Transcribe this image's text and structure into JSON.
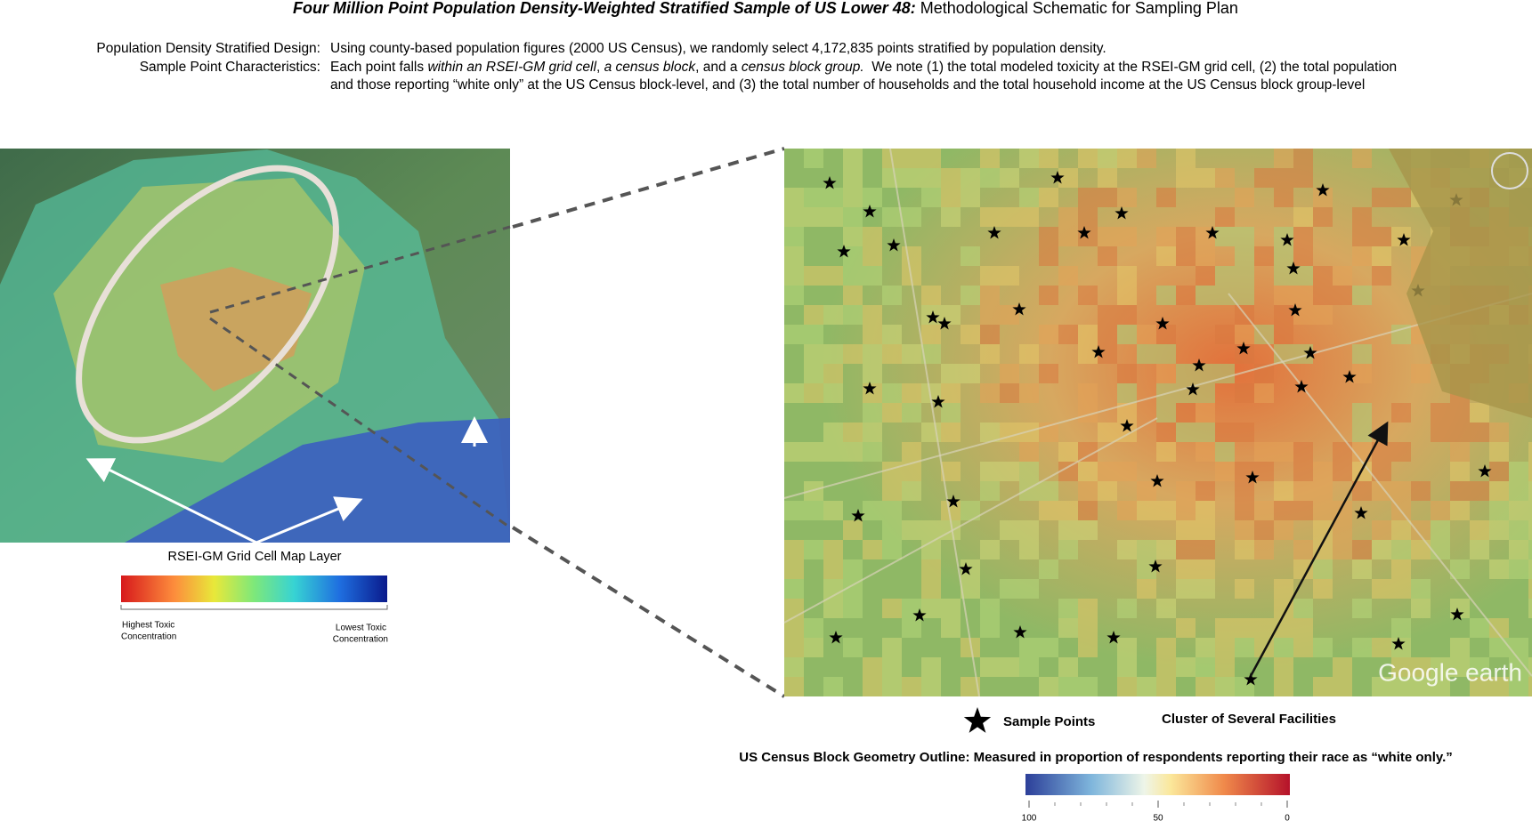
{
  "header": {
    "title_bold": "Four Million Point Population Density-Weighted Stratified Sample of US Lower 48:",
    "title_rest": " Methodological Schematic for Sampling Plan"
  },
  "description": {
    "design": {
      "label": "Population Density Stratified Design:",
      "text": "Using county-based population figures (2000 US Census), we randomly select 4,172,835 points stratified by population density."
    },
    "characteristics": {
      "label": "Sample Point Characteristics:",
      "segments": [
        "Each point falls ",
        "within an RSEI-GM grid cell",
        ", ",
        "a census block",
        ", and a ",
        "census block group.",
        "  We note (1) the total modeled toxicity at the RSEI-GM grid cell, (2) the total population"
      ],
      "line2": "and those reporting “white only” at the US Census block-level, and (3) the total number of households and the total household income at the US Census block group-level"
    }
  },
  "left_legend": {
    "title": "RSEI-GM Grid Cell Map Layer",
    "high_label": [
      "Highest Toxic",
      "Concentration"
    ],
    "low_label": [
      "Lowest Toxic",
      "Concentration"
    ]
  },
  "right_map": {
    "watermark": "Google earth"
  },
  "right_legend": {
    "sample_points": "Sample Points",
    "cluster": "Cluster of Several Facilities",
    "caption": "US Census Block Geometry Outline: Measured in proportion of respondents reporting their race as “white only.”",
    "ticks": [
      100,
      50,
      0
    ]
  }
}
